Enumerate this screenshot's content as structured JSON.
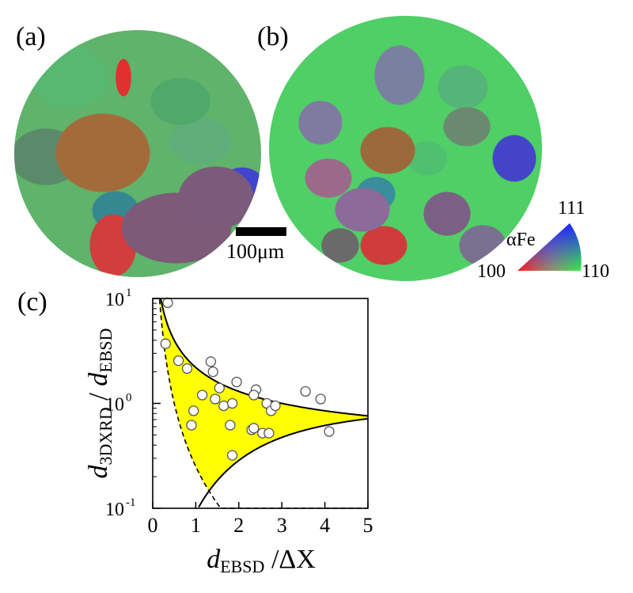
{
  "panels": {
    "a_label": "(a)",
    "b_label": "(b)",
    "c_label": "(c)"
  },
  "scale_bar": {
    "label": "100μm"
  },
  "ipf_key": {
    "material": "αFe",
    "corner_100": "100",
    "corner_110": "110",
    "corner_111": "111",
    "colors": {
      "100": "#ff1a1a",
      "110": "#33ee44",
      "111": "#2222ff"
    }
  },
  "chart_data": {
    "type": "scatter",
    "title": "",
    "xlabel_main": "d",
    "xlabel_sub": "EBSD",
    "xlabel_tail": " /ΔX",
    "ylabel_main": "d",
    "ylabel_sub1": "3DXRD",
    "ylabel_mid": " / ",
    "ylabel_main2": "d",
    "ylabel_sub2": "EBSD",
    "xlim": [
      0,
      5
    ],
    "ylim": [
      0.1,
      10
    ],
    "yscale": "log",
    "x_ticks": [
      0,
      1,
      2,
      3,
      4,
      5
    ],
    "x_tick_labels": [
      "0",
      "1",
      "2",
      "3",
      "4",
      "5"
    ],
    "y_ticks": [
      0.1,
      1,
      10
    ],
    "y_tick_labels": [
      {
        "base": "10",
        "exp": "-1"
      },
      {
        "base": "10",
        "exp": "0"
      },
      {
        "base": "10",
        "exp": "1"
      }
    ],
    "points": [
      [
        0.35,
        9.1
      ],
      [
        0.3,
        3.7
      ],
      [
        0.6,
        2.55
      ],
      [
        0.8,
        2.15
      ],
      [
        1.35,
        2.5
      ],
      [
        1.4,
        2.0
      ],
      [
        1.15,
        1.2
      ],
      [
        1.55,
        1.4
      ],
      [
        1.45,
        1.1
      ],
      [
        1.95,
        1.6
      ],
      [
        1.65,
        0.95
      ],
      [
        1.85,
        1.0
      ],
      [
        2.4,
        1.35
      ],
      [
        2.35,
        1.2
      ],
      [
        2.65,
        1.0
      ],
      [
        2.75,
        0.85
      ],
      [
        2.85,
        0.95
      ],
      [
        3.55,
        1.3
      ],
      [
        3.9,
        1.1
      ],
      [
        0.9,
        0.62
      ],
      [
        0.95,
        0.85
      ],
      [
        1.8,
        0.62
      ],
      [
        2.3,
        0.56
      ],
      [
        2.35,
        0.58
      ],
      [
        2.55,
        0.52
      ],
      [
        2.7,
        0.52
      ],
      [
        4.1,
        0.54
      ],
      [
        1.85,
        0.32
      ]
    ],
    "bounds": {
      "upper": "0.4 + 1.8/x (solid)",
      "lower": "x^2/(x^2 + 10) for x > 2.2 (solid)",
      "dashed": "0.25 / x^2 (dashed)"
    },
    "fill_color": "#ffff00"
  }
}
